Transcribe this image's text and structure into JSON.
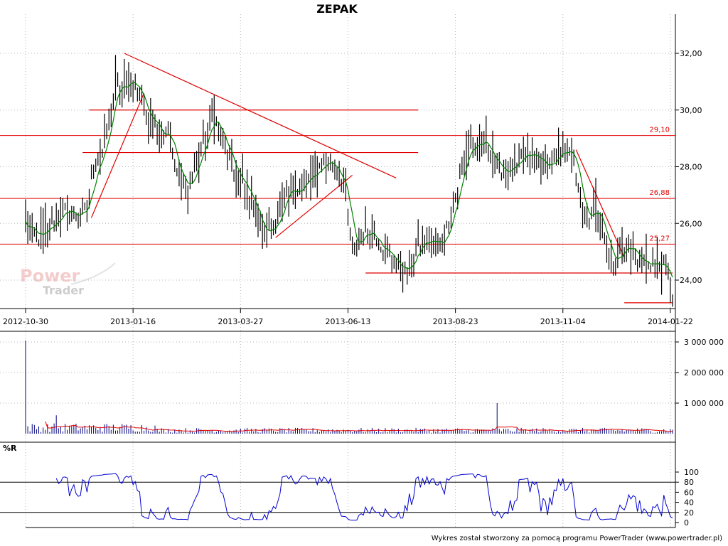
{
  "chart_data": {
    "type": "candlestick",
    "title": "ZEPAK",
    "footer": "Wykres został stworzony za pomocą programu PowerTrader (www.powertrader.pl)",
    "watermark": [
      "Power",
      "Trader"
    ],
    "x_tick_labels": [
      "2012-10-30",
      "2013-01-16",
      "2013-03-27",
      "2013-06-13",
      "2013-08-23",
      "2013-11-04",
      "2014-01-22"
    ],
    "price_panel": {
      "ylim": [
        23.0,
        33.0
      ],
      "y_ticks": [
        24,
        26,
        28,
        30,
        32
      ],
      "y_tick_labels": [
        "24,00",
        "26,00",
        "28,00",
        "30,00",
        "32,00"
      ],
      "grid": true,
      "close_anchors": [
        [
          0,
          26.0
        ],
        [
          3,
          25.6
        ],
        [
          6,
          25.5
        ],
        [
          10,
          25.7
        ],
        [
          14,
          26.2
        ],
        [
          18,
          26.4
        ],
        [
          24,
          26.3
        ],
        [
          28,
          26.5
        ],
        [
          31,
          28.0
        ],
        [
          35,
          28.5
        ],
        [
          38,
          29.5
        ],
        [
          41,
          31.0
        ],
        [
          44,
          30.5
        ],
        [
          47,
          31.2
        ],
        [
          50,
          30.8
        ],
        [
          53,
          30.5
        ],
        [
          56,
          29.5
        ],
        [
          59,
          29.8
        ],
        [
          62,
          29.0
        ],
        [
          65,
          29.5
        ],
        [
          68,
          28.0
        ],
        [
          71,
          27.5
        ],
        [
          74,
          27.2
        ],
        [
          77,
          28.0
        ],
        [
          80,
          28.5
        ],
        [
          83,
          29.3
        ],
        [
          86,
          29.8
        ],
        [
          89,
          29.0
        ],
        [
          92,
          28.5
        ],
        [
          95,
          27.8
        ],
        [
          98,
          27.5
        ],
        [
          101,
          27.0
        ],
        [
          104,
          26.8
        ],
        [
          107,
          25.8
        ],
        [
          110,
          25.6
        ],
        [
          113,
          26.0
        ],
        [
          116,
          26.3
        ],
        [
          119,
          27.0
        ],
        [
          122,
          27.2
        ],
        [
          125,
          27.2
        ],
        [
          128,
          27.5
        ],
        [
          131,
          27.6
        ],
        [
          134,
          28.0
        ],
        [
          137,
          28.2
        ],
        [
          140,
          28.1
        ],
        [
          143,
          27.8
        ],
        [
          146,
          27.0
        ],
        [
          148,
          25.5
        ],
        [
          150,
          25.0
        ],
        [
          152,
          25.5
        ],
        [
          155,
          25.7
        ],
        [
          158,
          25.7
        ],
        [
          161,
          25.4
        ],
        [
          164,
          25.0
        ],
        [
          167,
          24.8
        ],
        [
          170,
          24.5
        ],
        [
          173,
          24.3
        ],
        [
          176,
          24.6
        ],
        [
          179,
          25.2
        ],
        [
          182,
          25.3
        ],
        [
          185,
          25.4
        ],
        [
          188,
          25.2
        ],
        [
          191,
          25.5
        ],
        [
          194,
          26.5
        ],
        [
          197,
          27.2
        ],
        [
          200,
          28.3
        ],
        [
          203,
          28.8
        ],
        [
          206,
          28.6
        ],
        [
          209,
          28.9
        ],
        [
          212,
          28.5
        ],
        [
          215,
          28.0
        ],
        [
          218,
          27.8
        ],
        [
          221,
          28.0
        ],
        [
          224,
          27.9
        ],
        [
          227,
          28.4
        ],
        [
          230,
          28.3
        ],
        [
          233,
          28.4
        ],
        [
          236,
          28.0
        ],
        [
          239,
          28.1
        ],
        [
          242,
          28.2
        ],
        [
          245,
          28.5
        ],
        [
          248,
          28.7
        ],
        [
          251,
          27.8
        ],
        [
          254,
          26.3
        ],
        [
          257,
          26.1
        ],
        [
          260,
          26.5
        ],
        [
          263,
          26.0
        ],
        [
          266,
          25.0
        ],
        [
          269,
          24.6
        ],
        [
          272,
          25.2
        ],
        [
          275,
          25.2
        ],
        [
          278,
          24.9
        ],
        [
          281,
          24.6
        ],
        [
          284,
          24.6
        ],
        [
          287,
          24.6
        ],
        [
          290,
          24.5
        ],
        [
          293,
          24.2
        ],
        [
          295,
          23.5
        ]
      ],
      "moving_average_color": "#008000",
      "candle_color": "#000000",
      "horizontal_levels": [
        {
          "value": 29.1,
          "label": "29,10"
        },
        {
          "value": 26.88,
          "label": "26,88"
        },
        {
          "value": 25.27,
          "label": "25,27"
        }
      ],
      "support_resistance_segments": [
        {
          "from": [
            29,
            30.0
          ],
          "to": [
            179,
            30.0
          ]
        },
        {
          "from": [
            26,
            28.5
          ],
          "to": [
            179,
            28.5
          ]
        },
        {
          "from": [
            155,
            24.25
          ],
          "to": [
            295,
            24.25
          ]
        },
        {
          "from": [
            273,
            23.2
          ],
          "to": [
            295,
            23.2
          ]
        }
      ],
      "trend_lines": [
        {
          "from": [
            45,
            32.0
          ],
          "to": [
            169,
            27.6
          ]
        },
        {
          "from": [
            30,
            26.2
          ],
          "to": [
            54,
            30.6
          ]
        },
        {
          "from": [
            114,
            25.5
          ],
          "to": [
            149,
            27.7
          ]
        },
        {
          "from": [
            251,
            28.6
          ],
          "to": [
            273,
            24.8
          ]
        }
      ],
      "line_color": "#e00000"
    },
    "volume_panel": {
      "ylim": [
        0,
        3000000
      ],
      "y_ticks": [
        1000000,
        2000000,
        3000000
      ],
      "y_tick_labels": [
        "1 000 000",
        "2 000 000",
        "3 000 000"
      ],
      "bar_color": "#000080",
      "average_color": "#e00000",
      "spikes": [
        [
          0,
          3050000
        ],
        [
          14,
          600000
        ],
        [
          215,
          1000000
        ]
      ],
      "baseline_volume": 100000
    },
    "wr_panel": {
      "label": "%R",
      "ylim": [
        0,
        100
      ],
      "y_ticks": [
        0,
        20,
        40,
        60,
        80,
        100
      ],
      "y_tick_labels": [
        "0",
        "20",
        "40",
        "60",
        "80",
        "100"
      ],
      "ref_levels": [
        20,
        80
      ],
      "line_color": "#0000d0"
    }
  }
}
